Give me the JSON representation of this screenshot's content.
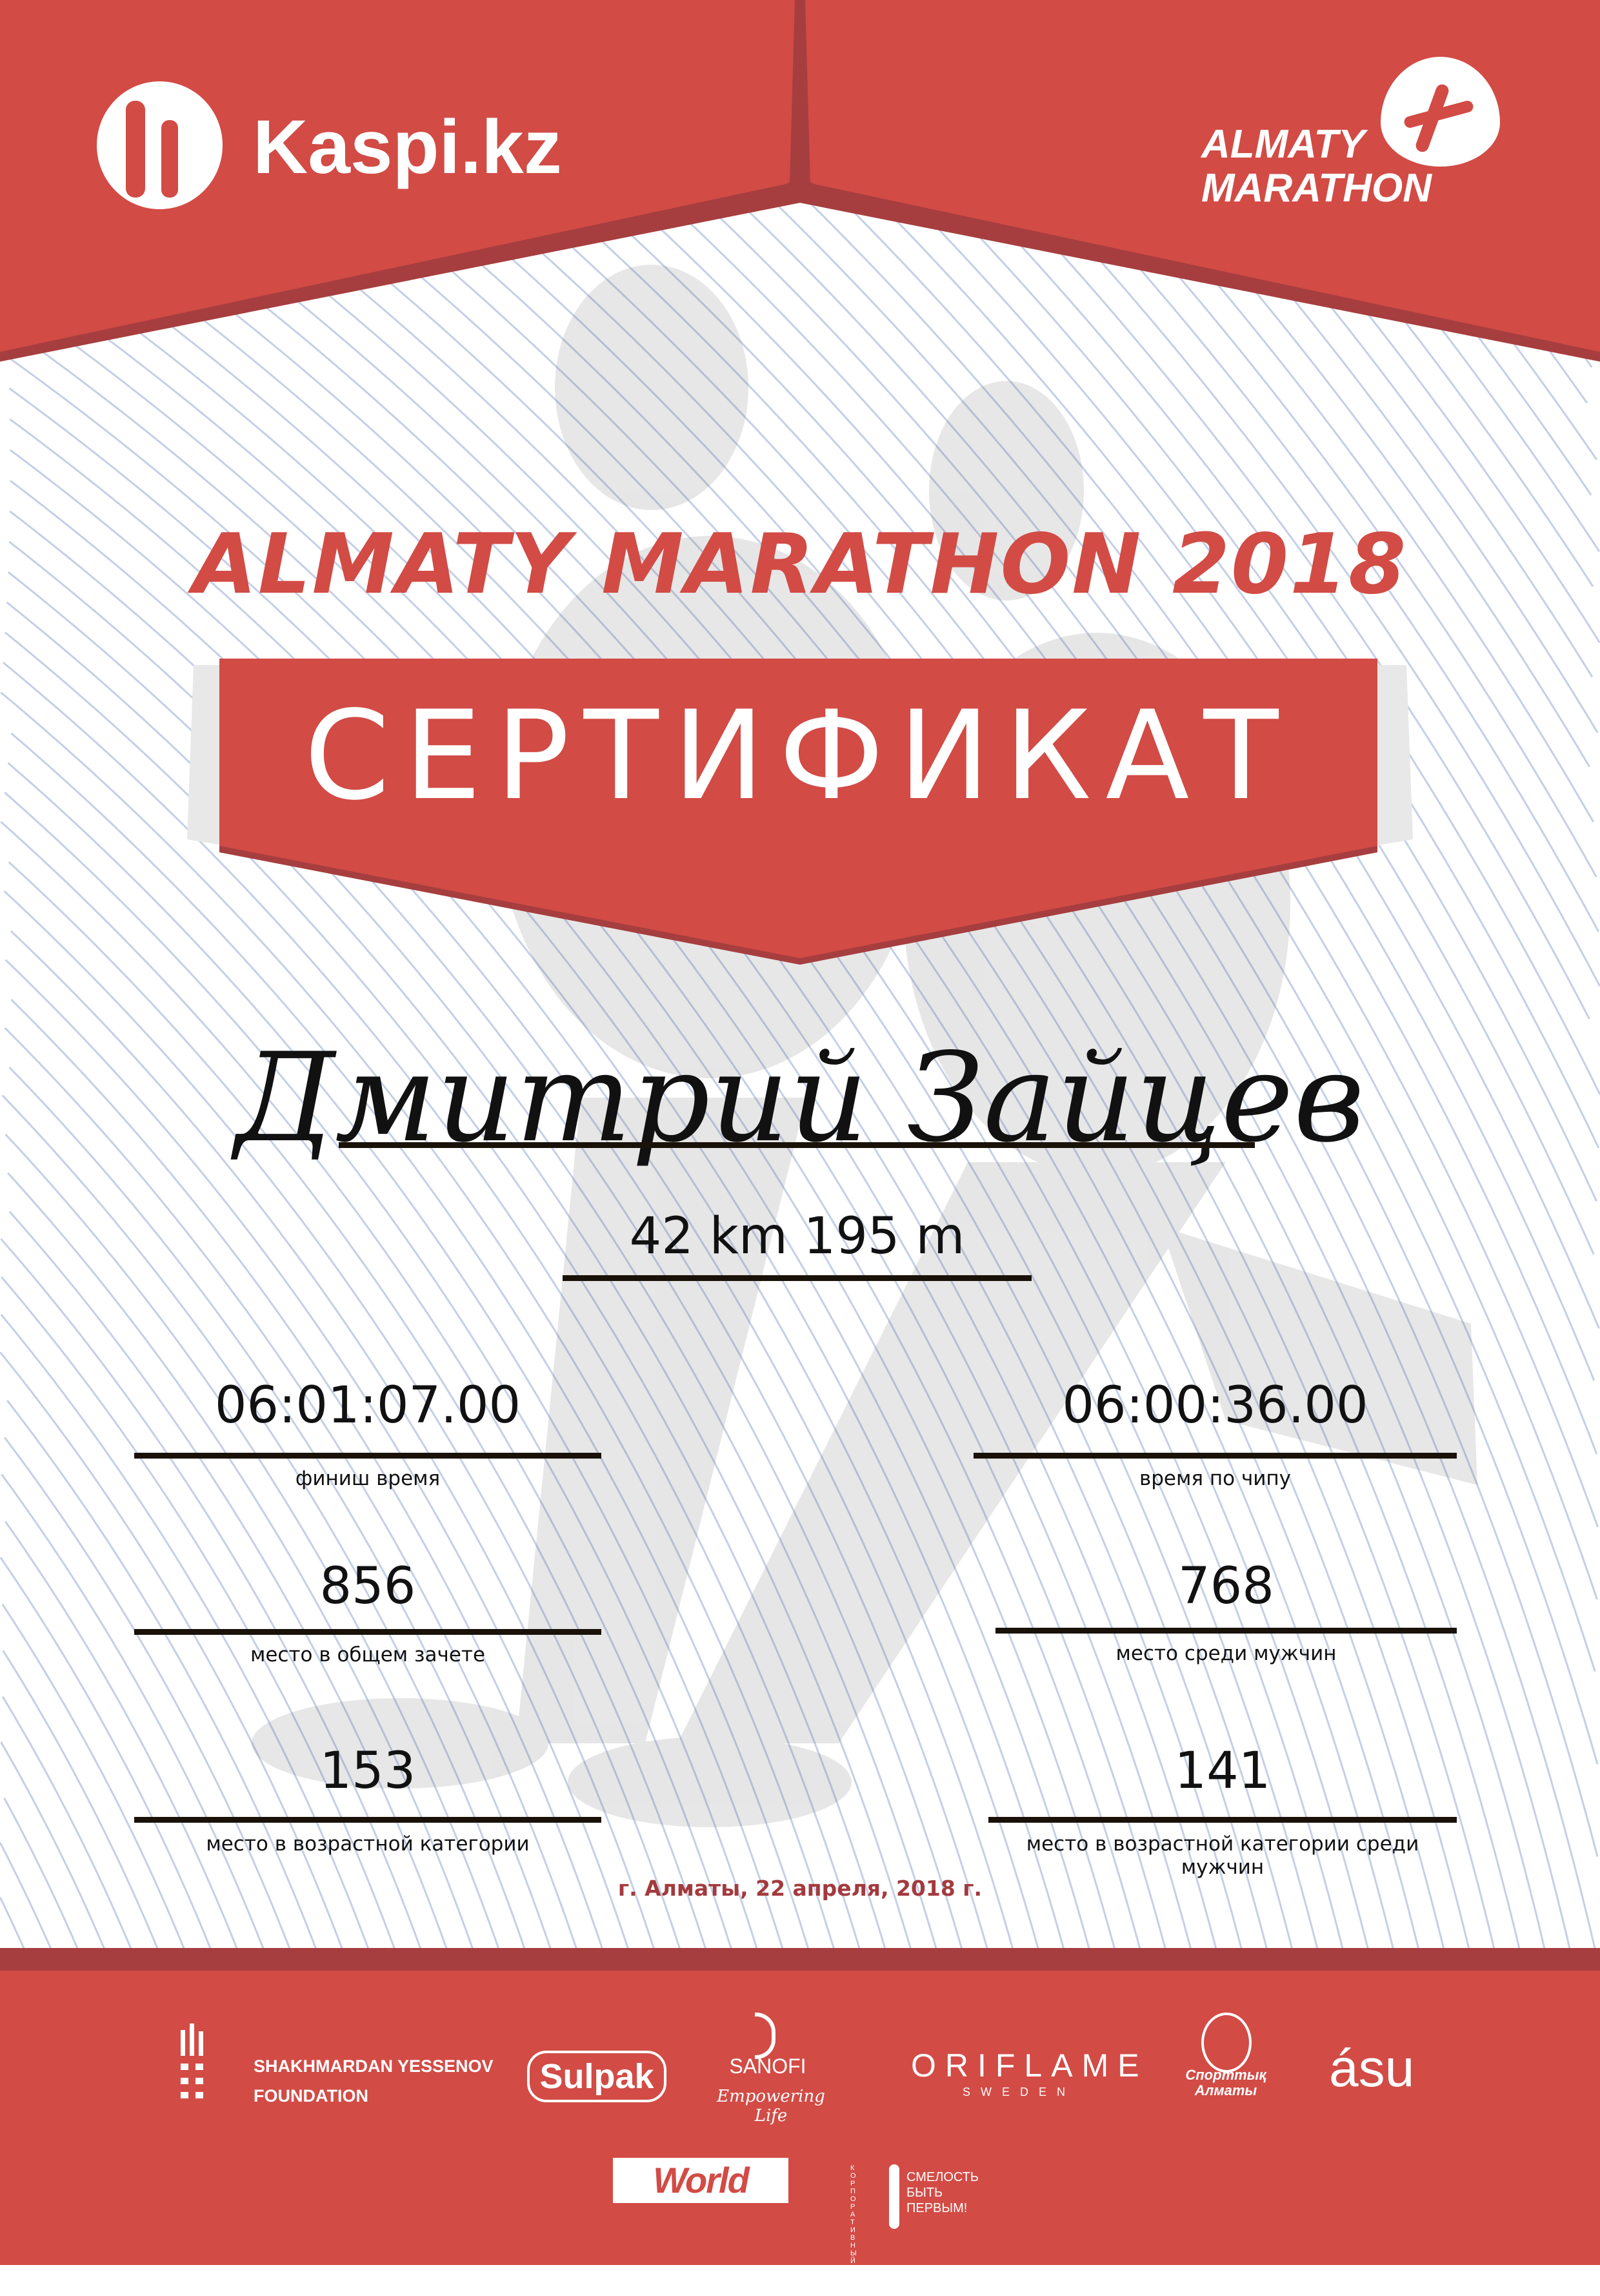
{
  "colors": {
    "red": "#d24b45",
    "dark_red": "#a63e3f",
    "lines": "#c5cfe6",
    "date": "#a33a3e"
  },
  "header": {
    "left_logo": {
      "icon": "kaspi-figures-icon",
      "text": "Kaspi.kz"
    },
    "right_logo": {
      "icon": "runner-drop-icon",
      "line1": "ALMATY",
      "line2": "MARATHON"
    }
  },
  "event_title": "ALMATY MARATHON 2018",
  "certificate_label": "СЕРТИФИКАТ",
  "participant_name": "Дмитрий Зайцев",
  "distance": "42 km 195 m",
  "stats": [
    {
      "value": "06:01:07.00",
      "label": "финиш время"
    },
    {
      "value": "06:00:36.00",
      "label": "время по чипу"
    },
    {
      "value": "856",
      "label": "место в общем зачете"
    },
    {
      "value": "768",
      "label": "место среди мужчин"
    },
    {
      "value": "153",
      "label": "место в возрастной категории"
    },
    {
      "value": "141",
      "label": "место в возрастной категории среди мужчин"
    }
  ],
  "date_place": "г. Алматы, 22 апреля, 2018 г.",
  "sponsors": {
    "yessenov": {
      "line1": "SHAKHMARDAN YESSENOV",
      "line2": "FOUNDATION"
    },
    "sulpak": "Sulpak",
    "sanofi": {
      "name": "SANOFI",
      "tagline": "Empowering Life"
    },
    "oriflame": {
      "name": "ORIFLAME",
      "sub": "SWEDEN"
    },
    "sport_almaty": {
      "line1": "Спорттық",
      "line2": "Алматы"
    },
    "asu": "ásu",
    "worldclass": "World Class",
    "smelost": {
      "arc": "КОРПОРАТИВНЫЙ ФОНД",
      "line1": "СМЕЛОСТЬ",
      "line2": "БЫТЬ",
      "line3": "ПЕРВЫМ!"
    }
  }
}
